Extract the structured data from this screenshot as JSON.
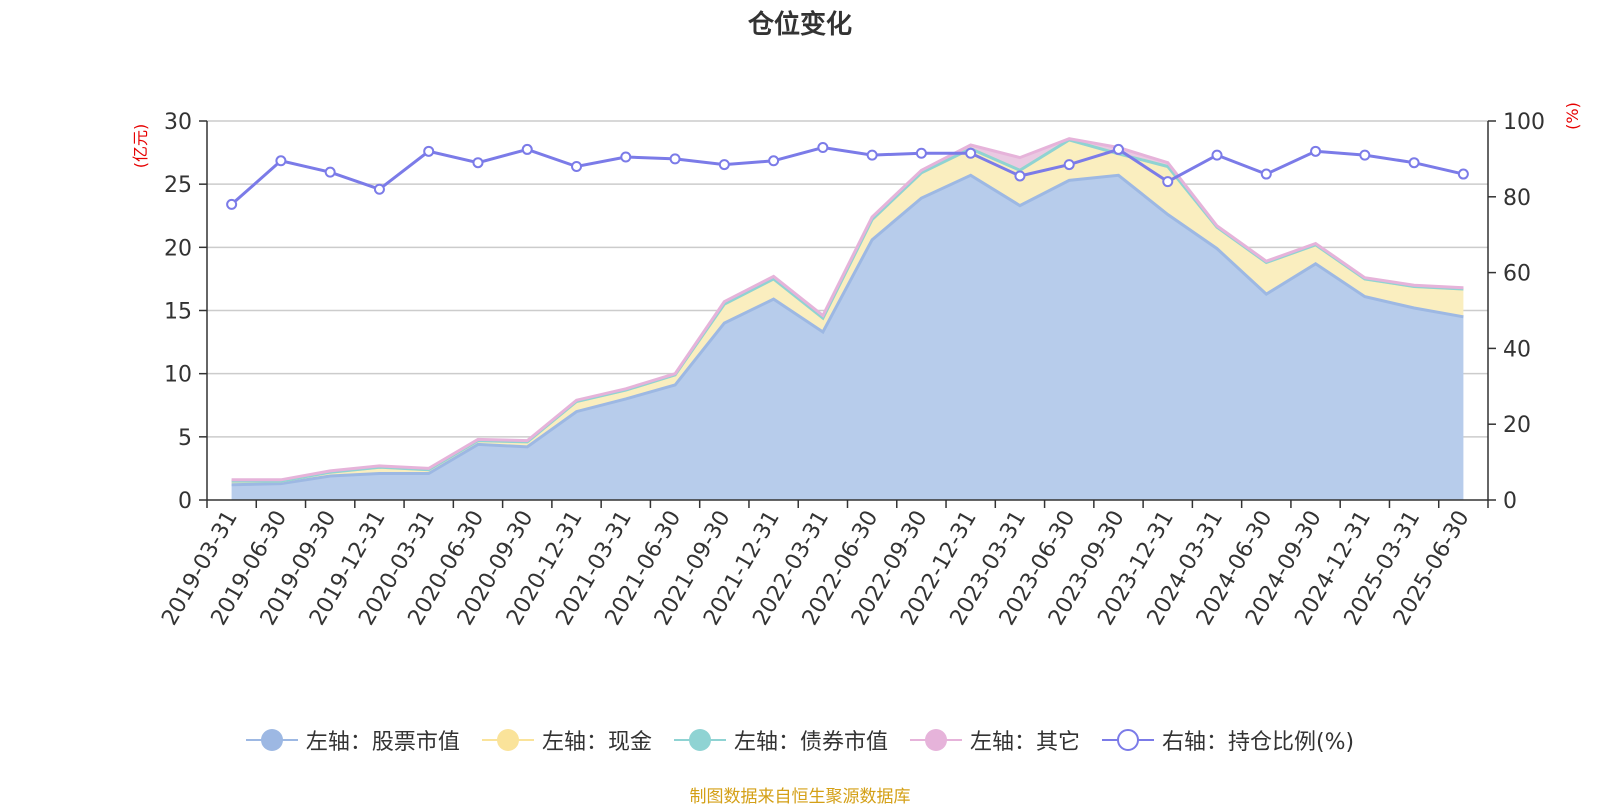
{
  "title": "仓位变化",
  "source_text": "制图数据来自恒生聚源数据库",
  "chart_data": {
    "type": "area",
    "title": "仓位变化",
    "left_axis": {
      "label": "(亿元)",
      "range": [
        0,
        30
      ],
      "ticks": [
        "0",
        "5",
        "10",
        "15",
        "20",
        "25",
        "30"
      ]
    },
    "right_axis": {
      "label": "(%)",
      "range": [
        0,
        100
      ],
      "ticks": [
        "0",
        "20",
        "40",
        "60",
        "80",
        "100"
      ]
    },
    "categories": [
      "2019-03-31",
      "2019-06-30",
      "2019-09-30",
      "2019-12-31",
      "2020-03-31",
      "2020-06-30",
      "2020-09-30",
      "2020-12-31",
      "2021-03-31",
      "2021-06-30",
      "2021-09-30",
      "2021-12-31",
      "2022-03-31",
      "2022-06-30",
      "2022-09-30",
      "2022-12-31",
      "2023-03-31",
      "2023-06-30",
      "2023-09-30",
      "2023-12-31",
      "2024-03-31",
      "2024-06-30",
      "2024-09-30",
      "2024-12-31",
      "2025-03-31",
      "2025-06-30"
    ],
    "series": [
      {
        "name": "左轴：股票市值",
        "axis": "left",
        "stack": true,
        "color": "#9db8e3",
        "fill": "#b7cceb",
        "values": [
          1.2,
          1.3,
          1.9,
          2.1,
          2.1,
          4.4,
          4.2,
          7.0,
          8.0,
          9.1,
          14.0,
          15.9,
          13.3,
          20.6,
          23.9,
          25.7,
          23.3,
          25.3,
          25.7,
          22.6,
          19.9,
          16.3,
          18.7,
          16.1,
          15.2,
          14.5
        ]
      },
      {
        "name": "左轴：现金",
        "axis": "left",
        "stack": true,
        "color": "#fae39a",
        "fill": "#faeebf",
        "values": [
          0.3,
          0.2,
          0.3,
          0.5,
          0.3,
          0.3,
          0.4,
          0.8,
          0.7,
          0.8,
          1.5,
          1.6,
          1.1,
          1.6,
          2.0,
          2.1,
          2.8,
          3.2,
          1.7,
          3.8,
          1.7,
          2.5,
          1.5,
          1.4,
          1.7,
          2.2
        ]
      },
      {
        "name": "左轴：债券市值",
        "axis": "left",
        "stack": true,
        "color": "#8fd3d3",
        "fill": "#bfe6e6",
        "values": [
          0,
          0,
          0,
          0,
          0,
          0,
          0,
          0,
          0,
          0,
          0,
          0,
          0,
          0,
          0,
          0,
          0,
          0,
          0,
          0,
          0,
          0,
          0,
          0,
          0,
          0
        ]
      },
      {
        "name": "左轴：其它",
        "axis": "left",
        "stack": true,
        "color": "#e6b3da",
        "fill": "#eac9e2",
        "values": [
          0.1,
          0.1,
          0.1,
          0.1,
          0.1,
          0.1,
          0.1,
          0.1,
          0.1,
          0.1,
          0.2,
          0.2,
          0.2,
          0.2,
          0.2,
          0.3,
          1.0,
          0.1,
          0.5,
          0.3,
          0.1,
          0.1,
          0.1,
          0.1,
          0.1,
          0.1
        ]
      },
      {
        "name": "右轴：持仓比例(%)",
        "axis": "right",
        "stack": false,
        "color": "#7b7be8",
        "values": [
          78,
          89.5,
          86.5,
          82,
          92,
          89,
          92.5,
          88,
          90.5,
          90,
          88.5,
          89.5,
          93,
          91,
          91.5,
          91.5,
          85.5,
          88.5,
          92.5,
          84,
          91,
          86,
          92,
          91,
          89,
          86
        ]
      }
    ],
    "legend_position": "bottom",
    "grid": true
  }
}
